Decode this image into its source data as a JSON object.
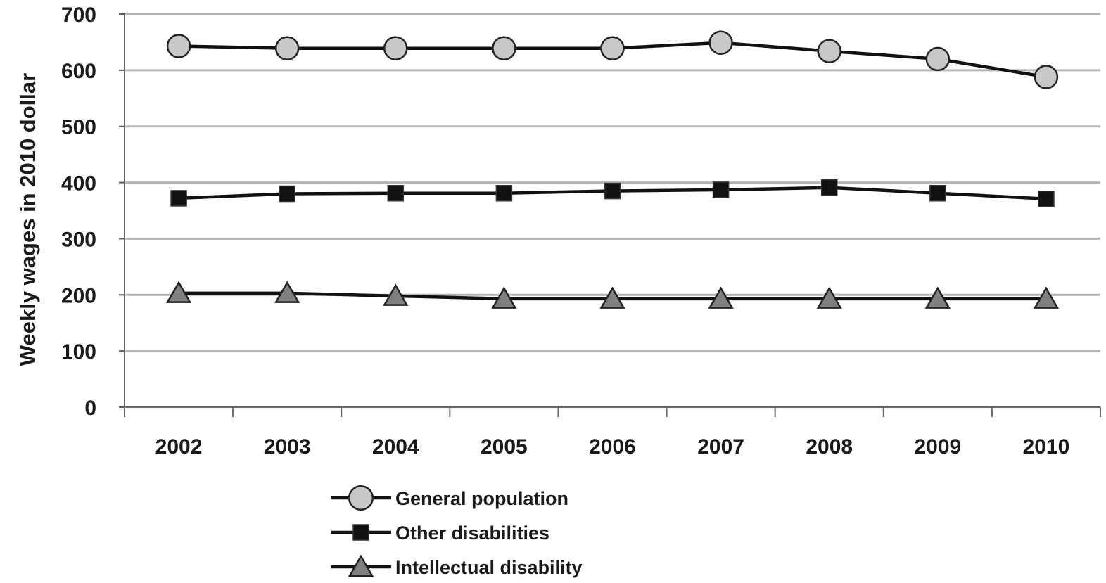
{
  "chart_data": {
    "type": "line",
    "title": "",
    "xlabel": "",
    "ylabel": "Weekly wages in 2010 dollar",
    "categories": [
      "2002",
      "2003",
      "2004",
      "2005",
      "2006",
      "2007",
      "2008",
      "2009",
      "2010"
    ],
    "yticks": [
      "0",
      "100",
      "200",
      "300",
      "400",
      "500",
      "600",
      "700"
    ],
    "ylim": [
      0,
      700
    ],
    "grid": true,
    "legend_position": "bottom",
    "series": [
      {
        "name": "General population",
        "marker": "circle",
        "color": "#c8c8c8",
        "values": [
          643,
          639,
          639,
          639,
          639,
          649,
          634,
          620,
          588
        ]
      },
      {
        "name": "Other disabilities",
        "marker": "square",
        "color": "#111111",
        "values": [
          372,
          380,
          381,
          381,
          385,
          387,
          391,
          381,
          371
        ]
      },
      {
        "name": "Intellectual disability",
        "marker": "triangle",
        "color": "#808080",
        "values": [
          203,
          203,
          198,
          193,
          193,
          193,
          193,
          193,
          193
        ]
      }
    ]
  }
}
